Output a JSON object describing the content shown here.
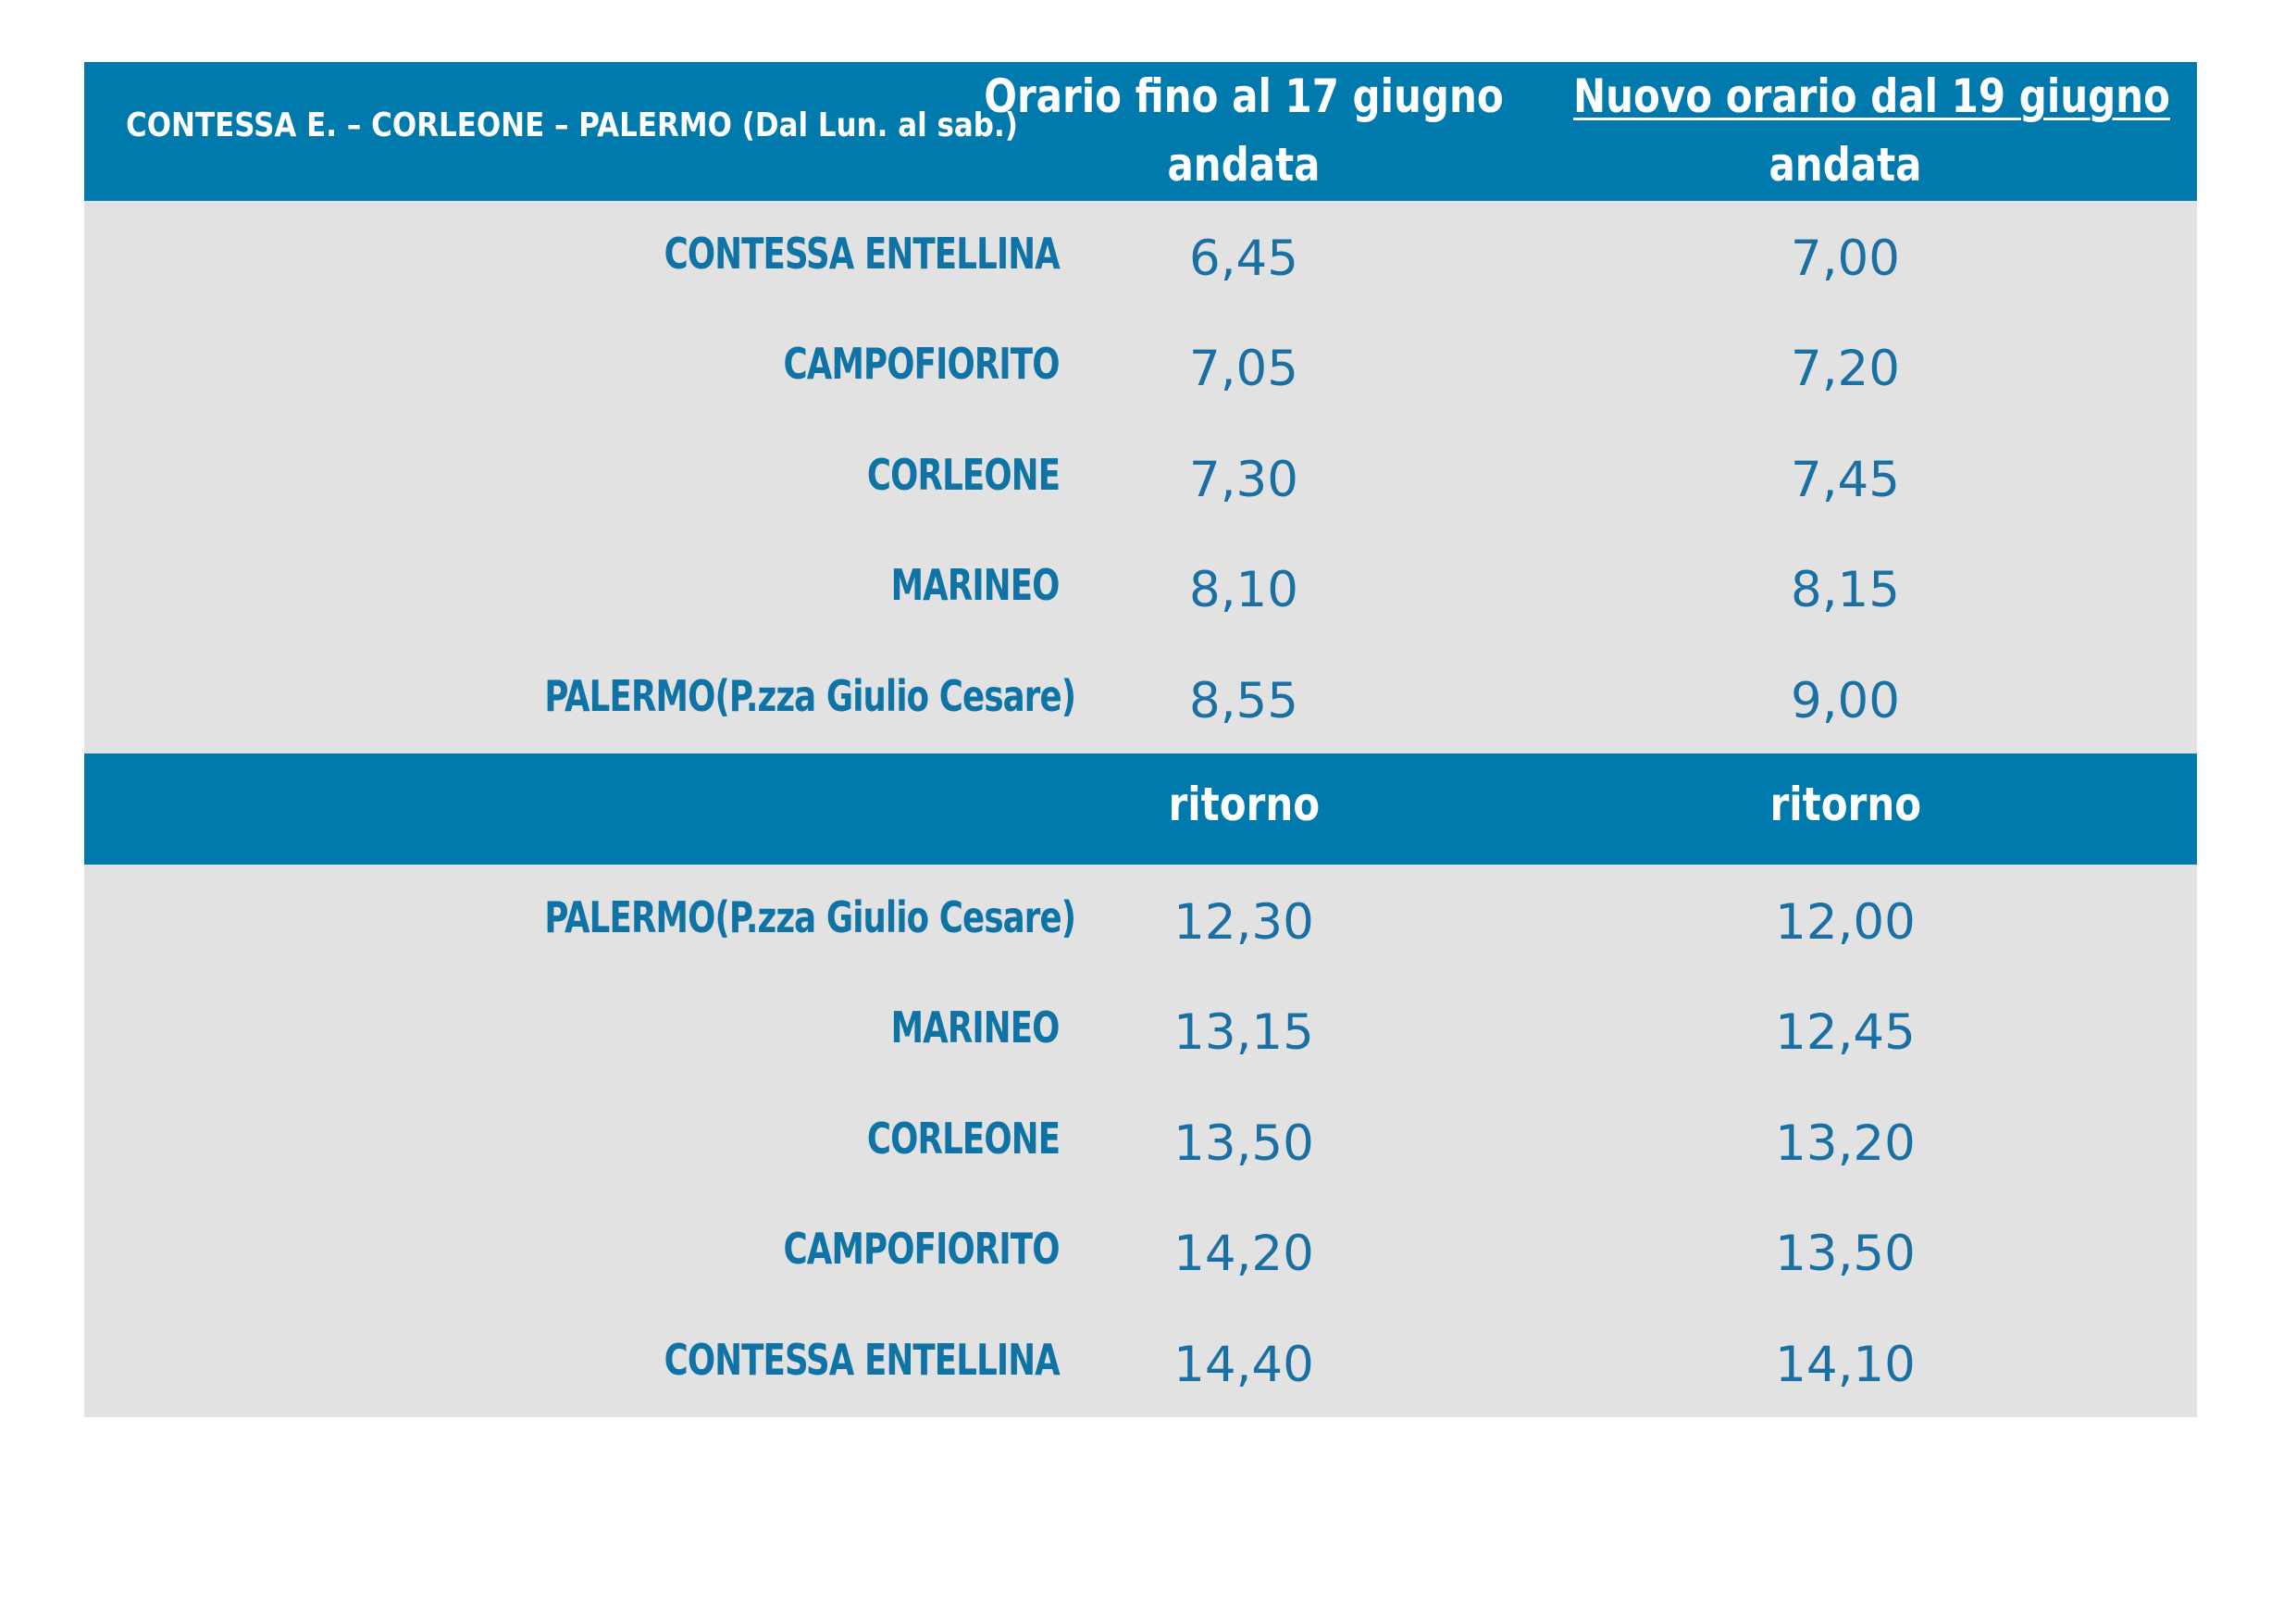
{
  "header": {
    "route_title": "CONTESSA E. – CORLEONE – PALERMO (Dal Lun. al sab.)",
    "col_old_title": "Orario fino al 17 giugno",
    "col_old_sub": "andata",
    "col_new_title": "Nuovo orario dal 19 giugno",
    "col_new_sub": "andata"
  },
  "outbound": [
    {
      "station": "CONTESSA ENTELLINA",
      "old": "6,45",
      "new": "7,00"
    },
    {
      "station": "CAMPOFIORITO",
      "old": "7,05",
      "new": "7,20"
    },
    {
      "station": "CORLEONE",
      "old": "7,30",
      "new": "7,45"
    },
    {
      "station": "MARINEO",
      "old": "8,10",
      "new": "8,15"
    },
    {
      "station": "PALERMO(P.zza Giulio Cesare)",
      "old": "8,55",
      "new": "9,00"
    }
  ],
  "return_header": {
    "col_old": "ritorno",
    "col_new": "ritorno"
  },
  "return": [
    {
      "station": "PALERMO(P.zza Giulio Cesare)",
      "old": "12,30",
      "new": "12,00"
    },
    {
      "station": "MARINEO",
      "old": "13,15",
      "new": "12,45"
    },
    {
      "station": "CORLEONE",
      "old": "13,50",
      "new": "13,20"
    },
    {
      "station": "CAMPOFIORITO",
      "old": "14,20",
      "new": "13,50"
    },
    {
      "station": "CONTESSA ENTELLINA",
      "old": "14,40",
      "new": "14,10"
    }
  ],
  "colors": {
    "header_band": "#0079ac",
    "body_band": "#e2e2e3",
    "station_text": "#0f73a6",
    "time_text": "#1a6fa3"
  }
}
